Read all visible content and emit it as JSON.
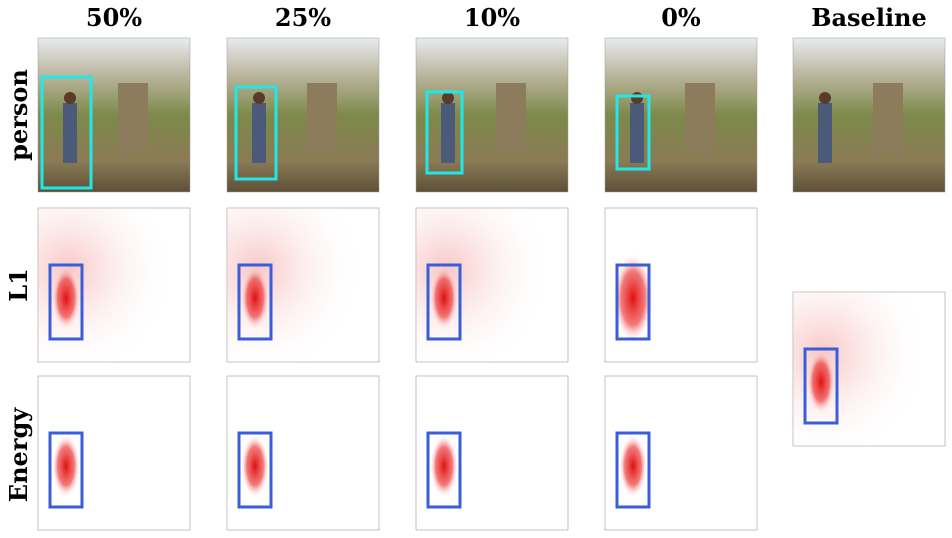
{
  "columns": [
    "50%",
    "25%",
    "10%",
    "0%",
    "Baseline"
  ],
  "rows": [
    "person",
    "L1",
    "Energy"
  ]
}
